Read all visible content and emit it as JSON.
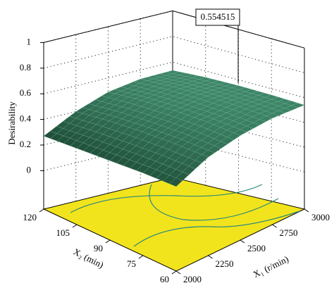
{
  "chart_data": {
    "type": "surface3d",
    "zlabel": "Desirability",
    "xlabel": "X₁ (r/min)",
    "ylabel": "X₂ (min)",
    "annotation": "0.554515",
    "x1": [
      2000,
      2250,
      2500,
      2750,
      3000
    ],
    "x2": [
      60,
      75,
      90,
      105,
      120
    ],
    "z": [
      [
        0.3,
        0.42,
        0.49,
        0.53,
        0.54
      ],
      [
        0.3,
        0.43,
        0.51,
        0.545,
        0.55
      ],
      [
        0.29,
        0.43,
        0.515,
        0.55,
        0.554
      ],
      [
        0.28,
        0.42,
        0.51,
        0.545,
        0.55
      ],
      [
        0.27,
        0.4,
        0.49,
        0.53,
        0.535
      ]
    ],
    "xlim": [
      2000,
      3000
    ],
    "xticks": [
      2000,
      2250,
      2500,
      2750,
      3000
    ],
    "ylim": [
      60,
      120
    ],
    "yticks": [
      60,
      75,
      90,
      105,
      120
    ],
    "zlim": [
      -0.3,
      1
    ],
    "zticks": [
      0,
      0.2,
      0.4,
      0.6,
      0.8,
      1
    ],
    "floor_color": "#f2e41c",
    "surface_colors": [
      "#1d4a35",
      "#3f8a6a"
    ],
    "grid": true
  }
}
